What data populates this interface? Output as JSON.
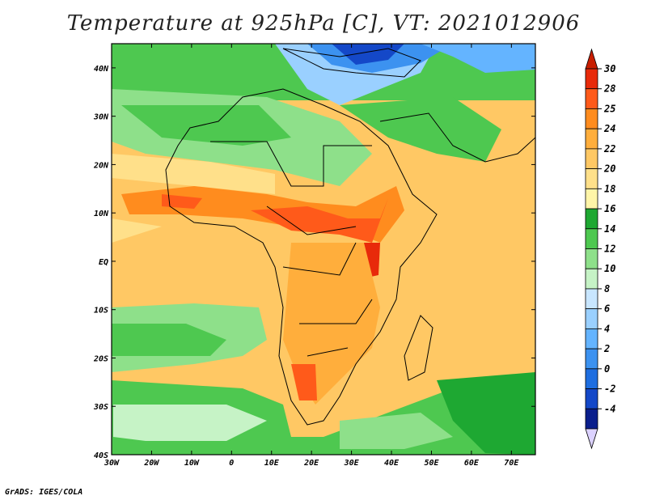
{
  "title": "Temperature at 925hPa [C], VT: 2021012906",
  "credit": "GrADS: IGES/COLA",
  "map": {
    "lon_labels": [
      "30W",
      "20W",
      "10W",
      "0",
      "10E",
      "20E",
      "30E",
      "40E",
      "50E",
      "60E",
      "70E"
    ],
    "lat_labels": [
      "40N",
      "30N",
      "20N",
      "10N",
      "EQ",
      "10S",
      "20S",
      "30S",
      "40S"
    ],
    "lon_range": [
      -30,
      76
    ],
    "lat_range": [
      -40,
      45
    ]
  },
  "colorbar": {
    "labels": [
      "30",
      "28",
      "25",
      "24",
      "22",
      "20",
      "18",
      "16",
      "14",
      "12",
      "10",
      "8",
      "6",
      "4",
      "2",
      "0",
      "-2",
      "-4"
    ],
    "colors": [
      "#e82a0a",
      "#ff5a1a",
      "#ff8c1e",
      "#ffae3c",
      "#ffc864",
      "#ffe08a",
      "#fff5a8",
      "#1ea832",
      "#4ec850",
      "#8ee08a",
      "#c6f3c6",
      "#c8e6ff",
      "#9ad0ff",
      "#64b4ff",
      "#3c92f0",
      "#1e6ee0",
      "#1448c8",
      "#0a1e8c"
    ],
    "top_arrow": "#c81e00",
    "bottom_arrow": "#dcd2ff"
  }
}
